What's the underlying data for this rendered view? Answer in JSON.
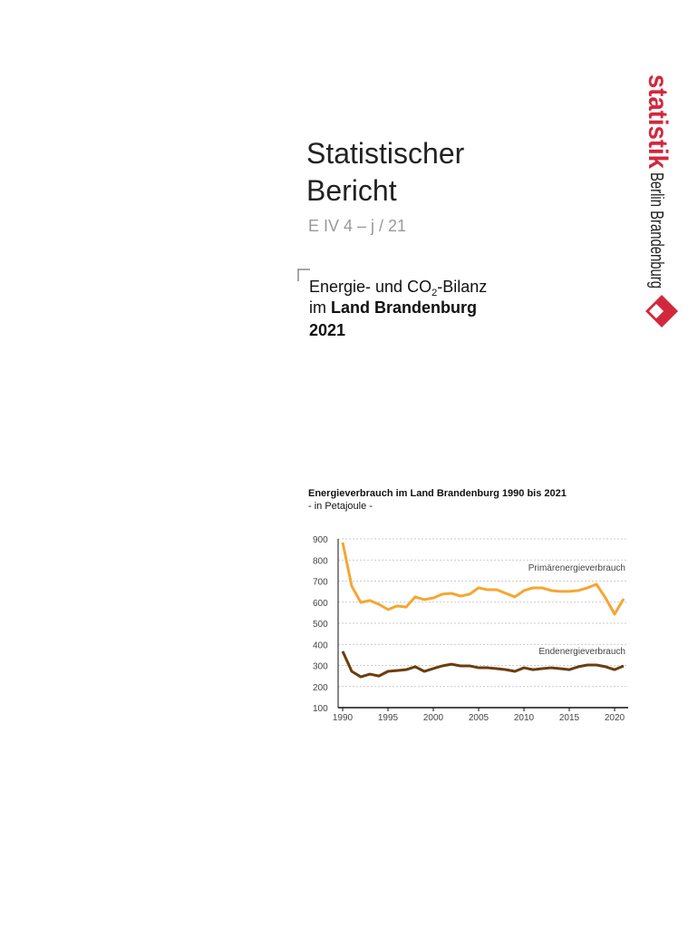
{
  "header": {
    "brand": "statistik",
    "region": "Berlin Brandenburg",
    "title_line1": "Statistischer",
    "title_line2": "Bericht",
    "code": "E IV 4 – j / 21",
    "subtitle_part1": "Energie- und CO",
    "subtitle_sub": "2",
    "subtitle_part2": "-Bilanz",
    "subtitle_part3": "im ",
    "subtitle_part4": "Land Brandenburg",
    "subtitle_year": "2021"
  },
  "chart_data": {
    "type": "line",
    "title": "Energieverbrauch im Land Brandenburg 1990 bis 2021",
    "subtitle": "- in Petajoule -",
    "x": [
      1990,
      1991,
      1992,
      1993,
      1994,
      1995,
      1996,
      1997,
      1998,
      1999,
      2000,
      2001,
      2002,
      2003,
      2004,
      2005,
      2006,
      2007,
      2008,
      2009,
      2010,
      2011,
      2012,
      2013,
      2014,
      2015,
      2016,
      2017,
      2018,
      2019,
      2020,
      2021
    ],
    "series": [
      {
        "name": "Primärenergieverbrauch",
        "color": "#f5a631",
        "values": [
          883,
          676,
          599,
          608,
          590,
          565,
          582,
          577,
          625,
          612,
          620,
          638,
          642,
          629,
          638,
          668,
          659,
          659,
          642,
          625,
          655,
          668,
          668,
          655,
          651,
          651,
          655,
          668,
          685,
          620,
          543,
          616
        ]
      },
      {
        "name": "Endenergieverbrauch",
        "color": "#6b3d0e",
        "values": [
          367,
          272,
          246,
          259,
          250,
          272,
          276,
          280,
          294,
          272,
          285,
          298,
          306,
          298,
          298,
          289,
          289,
          285,
          280,
          272,
          289,
          280,
          285,
          289,
          285,
          280,
          294,
          302,
          302,
          294,
          280,
          298
        ]
      }
    ],
    "xlim": [
      1989.5,
      2021.5
    ],
    "xticks": [
      1990,
      1995,
      2000,
      2005,
      2010,
      2015,
      2020
    ],
    "ylim": [
      100,
      900
    ],
    "yticks": [
      100,
      200,
      300,
      400,
      500,
      600,
      700,
      800,
      900
    ],
    "grid": true
  }
}
